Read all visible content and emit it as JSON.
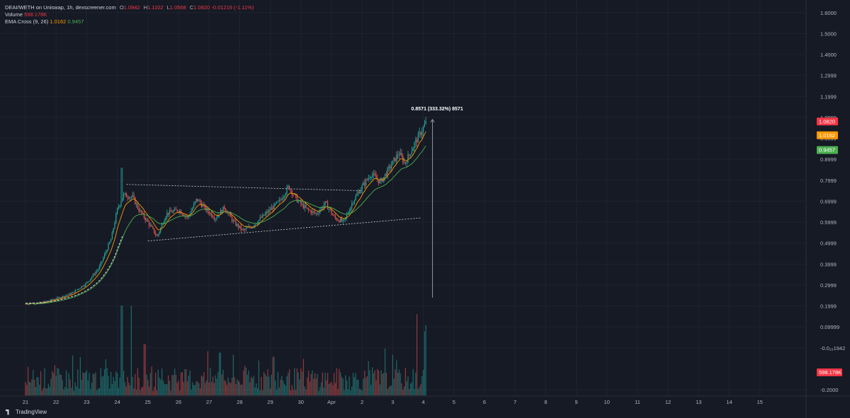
{
  "legend": {
    "title": "DEAI/WETH on Uniswap, 1h, dexscreener.com",
    "o_label": "O",
    "o_value": "1.0942",
    "h_label": "H",
    "h_value": "1.1102",
    "l_label": "L",
    "l_value": "1.0568",
    "c_label": "C",
    "c_value": "1.0820",
    "change": "-0.01219 (-1.11%)",
    "volume_label": "Volume",
    "volume_value": "598.178K",
    "ema_label": "EMA Cross (9, 26)",
    "ema_fast": "1.0162",
    "ema_slow": "0.9457"
  },
  "measure_label": "0.8571 (333.32%) 8571",
  "branding": "TradingView",
  "colors": {
    "bg": "#161a25",
    "up": "#26a69a",
    "down": "#ef5350",
    "ema_fast": "#ff9800",
    "ema_slow": "#4caf50",
    "grid": "#1f2330"
  },
  "price_tags": [
    {
      "label": "1.0820",
      "value": 1.082,
      "color": "#f23645"
    },
    {
      "label": "1.0162",
      "value": 1.0162,
      "color": "#ff9800"
    },
    {
      "label": "0.9457",
      "value": 0.9457,
      "color": "#4caf50"
    }
  ],
  "volume_tag": {
    "label": "598.178K",
    "color": "#f23645"
  },
  "chart_data": {
    "type": "candlestick",
    "y_ticks": [
      "1.6000",
      "1.5000",
      "1.4000",
      "1.2999",
      "1.1999",
      "1.0999",
      "0.9999",
      "0.8999",
      "0.7999",
      "0.6999",
      "0.5999",
      "0.4999",
      "0.3999",
      "0.2999",
      "0.1999",
      "0.09999",
      "-0.0₁₀1942",
      "-0.2000"
    ],
    "y_tick_values": [
      1.6,
      1.5,
      1.4,
      1.3,
      1.2,
      1.1,
      1.0,
      0.9,
      0.8,
      0.7,
      0.6,
      0.5,
      0.4,
      0.3,
      0.2,
      0.1,
      0.0,
      -0.2
    ],
    "x_ticks": [
      "21",
      "22",
      "23",
      "24",
      "25",
      "26",
      "27",
      "28",
      "29",
      "30",
      "Apr",
      "2",
      "3",
      "4",
      "5",
      "6",
      "7",
      "8",
      "9",
      "10",
      "11",
      "12",
      "13",
      "14",
      "15"
    ],
    "ylim": [
      -0.23,
      1.66
    ],
    "price_path": [
      [
        21.0,
        0.21
      ],
      [
        21.5,
        0.215
      ],
      [
        22.0,
        0.235
      ],
      [
        22.5,
        0.26
      ],
      [
        23.0,
        0.31
      ],
      [
        23.4,
        0.38
      ],
      [
        23.8,
        0.52
      ],
      [
        24.0,
        0.66
      ],
      [
        24.2,
        0.73
      ],
      [
        24.5,
        0.72
      ],
      [
        24.7,
        0.66
      ],
      [
        25.0,
        0.6
      ],
      [
        25.3,
        0.53
      ],
      [
        25.6,
        0.64
      ],
      [
        26.0,
        0.66
      ],
      [
        26.3,
        0.62
      ],
      [
        26.6,
        0.71
      ],
      [
        26.9,
        0.66
      ],
      [
        27.2,
        0.62
      ],
      [
        27.5,
        0.67
      ],
      [
        27.8,
        0.6
      ],
      [
        28.1,
        0.56
      ],
      [
        28.4,
        0.58
      ],
      [
        28.7,
        0.62
      ],
      [
        29.0,
        0.66
      ],
      [
        29.3,
        0.7
      ],
      [
        29.6,
        0.77
      ],
      [
        29.9,
        0.7
      ],
      [
        30.2,
        0.66
      ],
      [
        30.5,
        0.64
      ],
      [
        30.8,
        0.69
      ],
      [
        31.1,
        0.62
      ],
      [
        31.4,
        0.6
      ],
      [
        31.7,
        0.7
      ],
      [
        32.0,
        0.77
      ],
      [
        32.3,
        0.83
      ],
      [
        32.6,
        0.79
      ],
      [
        32.9,
        0.86
      ],
      [
        33.2,
        0.93
      ],
      [
        33.4,
        0.88
      ],
      [
        33.7,
        0.97
      ],
      [
        34.0,
        1.05
      ],
      [
        34.1,
        1.082
      ]
    ],
    "triangle_upper": [
      [
        24.3,
        0.78
      ],
      [
        32.0,
        0.75
      ]
    ],
    "triangle_lower": [
      [
        25.0,
        0.51
      ],
      [
        33.9,
        0.62
      ]
    ],
    "measure": {
      "x": 34.3,
      "from": 0.24,
      "to": 1.09
    },
    "volume_max": 598.178,
    "volume_spikes": [
      [
        24.15,
        420
      ],
      [
        24.45,
        420
      ],
      [
        33.8,
        380
      ],
      [
        34.05,
        300
      ],
      [
        24.9,
        240
      ],
      [
        27.35,
        200
      ],
      [
        29.1,
        180
      ],
      [
        32.2,
        160
      ],
      [
        33.0,
        190
      ]
    ]
  }
}
